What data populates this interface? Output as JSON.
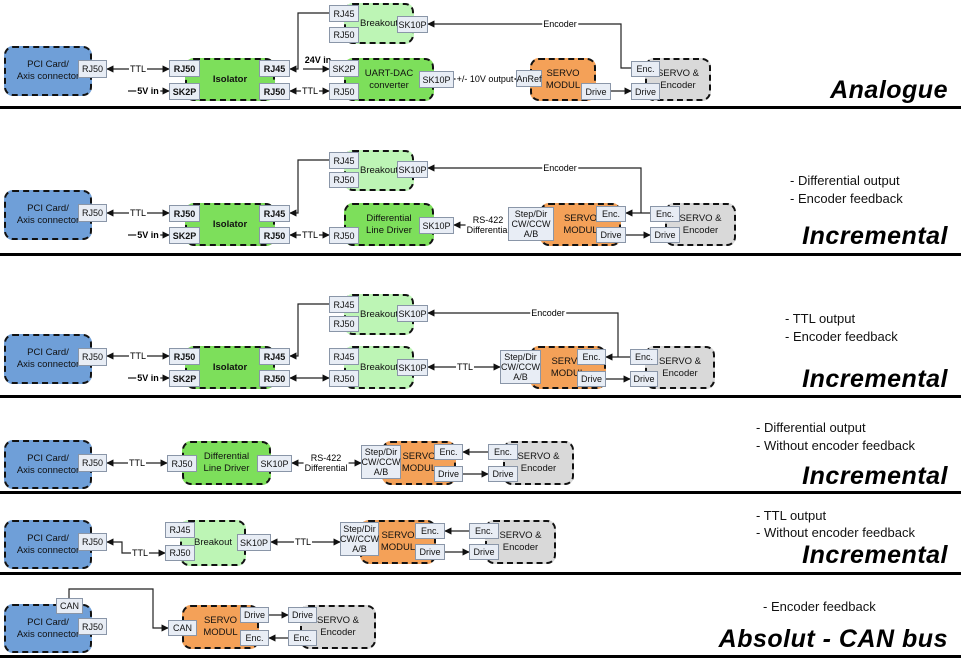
{
  "sections": [
    {
      "title": "Analogue",
      "notes": [],
      "boxes": {
        "pci": "PCI Card/\nAxis connector",
        "isolator": "Isolator",
        "breakout": "Breakout",
        "uart": "UART-DAC\nconverter",
        "servo": "SERVO\nMODUL",
        "servo_enc": "SERVO &\nEncoder"
      },
      "ports": {
        "pci_rj50": "RJ50",
        "iso_rj50": "RJ50",
        "iso_sk2p": "SK2P",
        "iso_rj45": "RJ45",
        "iso_rj50b": "RJ50",
        "bo_rj45": "RJ45",
        "bo_rj50": "RJ50",
        "bo_sk10p": "SK10P",
        "uart_sk2p": "SK2P",
        "uart_rj50": "RJ50",
        "uart_sk10p": "SK10P",
        "servo_anref": "AnRef",
        "servo_drive": "Drive",
        "se_enc": "Enc.",
        "se_drive": "Drive"
      },
      "labels": {
        "ttl1": "TTL",
        "v5": "5V in",
        "v24": "24V in",
        "ttl2": "TTL",
        "out10v": "+/- 10V output",
        "encoder": "Encoder"
      }
    },
    {
      "title": "Incremental",
      "notes": [
        "- Differential output",
        "- Encoder feedback"
      ],
      "boxes": {
        "pci": "PCI Card/\nAxis connector",
        "isolator": "Isolator",
        "breakout": "Breakout",
        "dld": "Differential\nLine Driver",
        "servo": "SERVO\nMODUL",
        "servo_enc": "SERVO &\nEncoder"
      },
      "ports": {
        "pci_rj50": "RJ50",
        "iso_rj50": "RJ50",
        "iso_sk2p": "SK2P",
        "iso_rj45": "RJ45",
        "iso_rj50b": "RJ50",
        "bo_rj45": "RJ45",
        "bo_rj50": "RJ50",
        "bo_sk10p": "SK10P",
        "dld_rj50": "RJ50",
        "dld_sk10p": "SK10P",
        "servo_step": "Step/Dir\nCW/CCW\nA/B",
        "servo_enc": "Enc.",
        "servo_drive": "Drive",
        "se_enc": "Enc.",
        "se_drive": "Drive"
      },
      "labels": {
        "ttl1": "TTL",
        "v5": "5V in",
        "ttl2": "TTL",
        "rs422": "RS-422\nDifferential",
        "encoder": "Encoder"
      }
    },
    {
      "title": "Incremental",
      "notes": [
        "- TTL output",
        "- Encoder feedback"
      ],
      "boxes": {
        "pci": "PCI Card/\nAxis connector",
        "isolator": "Isolator",
        "breakout": "Breakout",
        "breakout2": "Breakout",
        "servo": "SERVO\nMODUL",
        "servo_enc": "SERVO &\nEncoder"
      },
      "ports": {
        "pci_rj50": "RJ50",
        "iso_rj50": "RJ50",
        "iso_sk2p": "SK2P",
        "iso_rj45": "RJ45",
        "iso_rj50b": "RJ50",
        "bo_rj45": "RJ45",
        "bo_rj50": "RJ50",
        "bo_sk10p": "SK10P",
        "bo2_rj45": "RJ45",
        "bo2_rj50": "RJ50",
        "bo2_sk10p": "SK10P",
        "servo_step": "Step/Dir\nCW/CCW\nA/B",
        "servo_enc": "Enc.",
        "servo_drive": "Drive",
        "se_enc": "Enc.",
        "se_drive": "Drive"
      },
      "labels": {
        "ttl1": "TTL",
        "v5": "5V in",
        "ttl2": "TTL",
        "encoder": "Encoder"
      }
    },
    {
      "title": "Incremental",
      "notes": [
        "- Differential output",
        "- Without encoder feedback"
      ],
      "boxes": {
        "pci": "PCI Card/\nAxis connector",
        "dld": "Differential\nLine Driver",
        "servo": "SERVO\nMODUL",
        "servo_enc": "SERVO &\nEncoder"
      },
      "ports": {
        "pci_rj50": "RJ50",
        "dld_rj50": "RJ50",
        "dld_sk10p": "SK10P",
        "servo_step": "Step/Dir\nCW/CCW\nA/B",
        "servo_enc": "Enc.",
        "servo_drive": "Drive",
        "se_enc": "Enc.",
        "se_drive": "Drive"
      },
      "labels": {
        "ttl1": "TTL",
        "rs422": "RS-422\nDifferential"
      }
    },
    {
      "title": "Incremental",
      "notes": [
        "- TTL output",
        "- Without encoder feedback"
      ],
      "boxes": {
        "pci": "PCI Card/\nAxis connector",
        "breakout": "Breakout",
        "servo": "SERVO\nMODUL",
        "servo_enc": "SERVO &\nEncoder"
      },
      "ports": {
        "pci_rj50": "RJ50",
        "bo_rj45": "RJ45",
        "bo_rj50": "RJ50",
        "bo_sk10p": "SK10P",
        "servo_step": "Step/Dir\nCW/CCW\nA/B",
        "servo_enc": "Enc.",
        "servo_drive": "Drive",
        "se_enc": "Enc.",
        "se_drive": "Drive"
      },
      "labels": {
        "ttl1": "TTL",
        "ttl2": "TTL"
      }
    },
    {
      "title": "Absolut - CAN bus",
      "notes": [
        "- Encoder feedback"
      ],
      "boxes": {
        "pci": "PCI Card/\nAxis connector",
        "servo": "SERVO\nMODUL",
        "servo_enc": "SERVO &\nEncoder"
      },
      "ports": {
        "pci_can": "CAN",
        "pci_rj50": "RJ50",
        "servo_can": "CAN",
        "servo_drive": "Drive",
        "servo_enc": "Enc.",
        "se_drive": "Drive",
        "se_enc": "Enc."
      },
      "labels": {}
    }
  ],
  "colors": {
    "pci": "#6f9fd8",
    "isolator": "#7ddf5b",
    "breakout": "#bdf5b5",
    "servo": "#f4a158",
    "servo_enc": "#d9d9d9"
  }
}
